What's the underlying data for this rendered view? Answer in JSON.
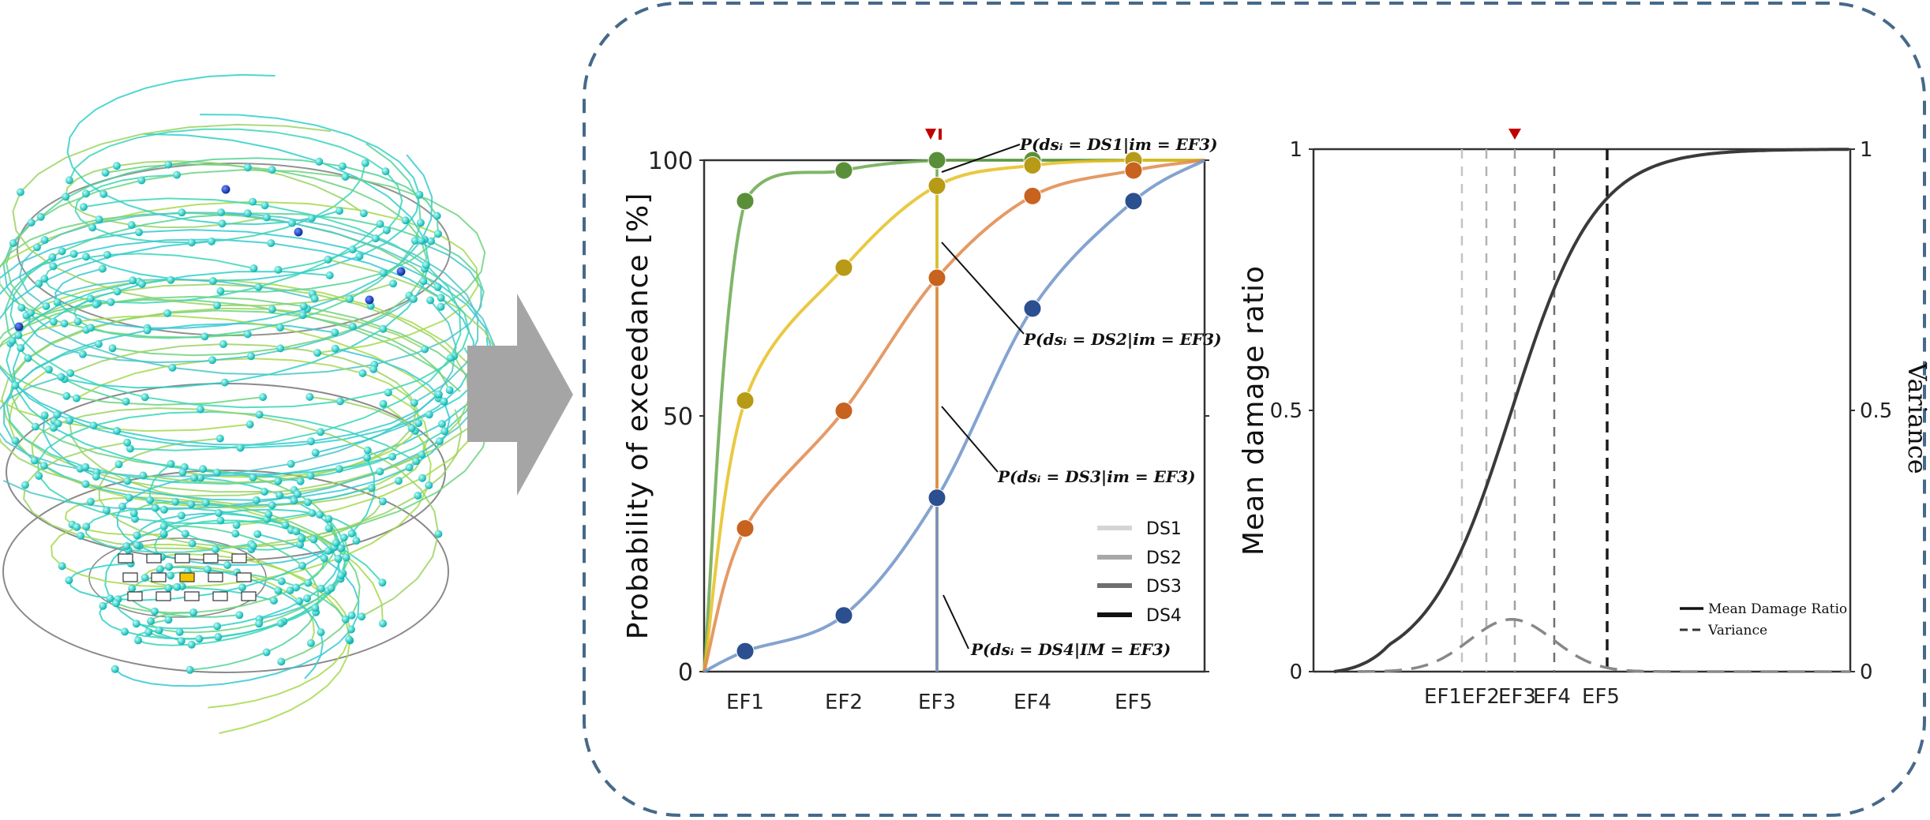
{
  "colors": {
    "frame": "#46698a",
    "arrow": "#a5a5a5",
    "ds1": "#6aa84f",
    "ds2": "#e6c020",
    "ds3": "#e0884a",
    "ds4": "#6f93c8",
    "ds1_marker": "#5a8f3a",
    "ds2_marker": "#b79a16",
    "ds3_marker": "#c8621f",
    "ds4_marker": "#2b4f8f",
    "marker_red": "#c00000",
    "mean_curve": "#3a3a3a",
    "variance_curve": "#888888"
  },
  "icons": {
    "process_arrow": "right-arrow-icon",
    "im_marker": "down-triangle-icon"
  },
  "chart_data": [
    {
      "type": "line",
      "ylabel": "Probability of exceedance [%]",
      "xlabel": "",
      "categories": [
        "EF1",
        "EF2",
        "EF3",
        "EF4",
        "EF5"
      ],
      "y_ticks": [
        "0",
        "50",
        "100"
      ],
      "ylim": [
        0,
        100
      ],
      "legend": {
        "placement": "bottom-right",
        "entries": [
          "DS1",
          "DS2",
          "DS3",
          "DS4"
        ],
        "shades": [
          "#d4d4d4",
          "#a8a8a8",
          "#6e6e6e",
          "#111111"
        ]
      },
      "marker_label": "▼I",
      "series": [
        {
          "key": "ds1",
          "x": [
            1,
            2,
            3,
            4,
            5
          ],
          "values": [
            92,
            98,
            100,
            100,
            100
          ]
        },
        {
          "key": "ds2",
          "x": [
            1,
            2,
            3,
            4,
            5
          ],
          "values": [
            53,
            79,
            95,
            99,
            100
          ]
        },
        {
          "key": "ds3",
          "x": [
            1,
            2,
            3,
            4,
            5
          ],
          "values": [
            28,
            51,
            77,
            93,
            98
          ]
        },
        {
          "key": "ds4",
          "x": [
            1,
            2,
            3,
            4,
            5
          ],
          "values": [
            4,
            11,
            34,
            71,
            92
          ]
        }
      ],
      "annotations": [
        {
          "key": "ds1",
          "text": "P(dsᵢ = DS1|im = EF3)"
        },
        {
          "key": "ds2",
          "text": "P(dsᵢ = DS2|im = EF3)"
        },
        {
          "key": "ds3",
          "text": "P(dsᵢ = DS3|im = EF3)"
        },
        {
          "key": "ds4",
          "text": "P(dsᵢ = DS4|IM = EF3)"
        }
      ]
    },
    {
      "type": "line",
      "ylabel": "Mean damage ratio",
      "y2label": "Variance",
      "xlabel": "",
      "categories": [
        "EF1",
        "EF2",
        "EF3",
        "EF4",
        "EF5"
      ],
      "y_ticks": [
        "0",
        "0.5",
        "1"
      ],
      "y2_ticks": [
        "0",
        "0.5",
        "1"
      ],
      "ylim": [
        0,
        1
      ],
      "legend": {
        "placement": "bottom-right",
        "entries": [
          "Mean Damage Ratio",
          "Variance"
        ]
      },
      "series": [
        {
          "name": "Mean Damage Ratio",
          "style": "solid"
        },
        {
          "name": "Variance",
          "style": "dashed"
        }
      ]
    }
  ]
}
